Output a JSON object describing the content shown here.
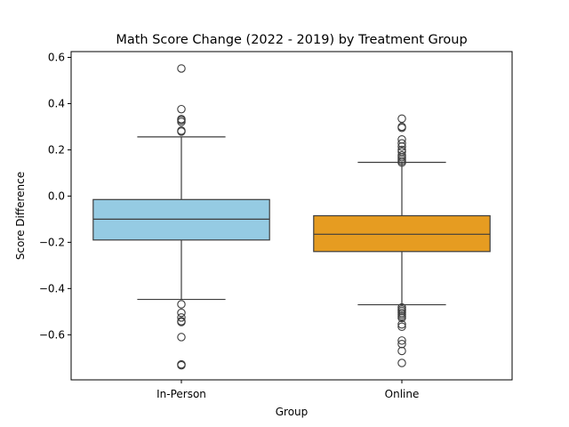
{
  "chart_data": {
    "type": "box",
    "title": "Math Score Change (2022 - 2019) by Treatment Group",
    "xlabel": "Group",
    "ylabel": "Score Difference",
    "ylim": [
      -0.795,
      0.625
    ],
    "yticks": [
      -0.6,
      -0.4,
      -0.2,
      0.0,
      0.2,
      0.4,
      0.6
    ],
    "ytick_labels": [
      "−0.6",
      "−0.4",
      "−0.2",
      "0.0",
      "0.2",
      "0.4",
      "0.6"
    ],
    "grid": false,
    "categories": [
      "In-Person",
      "Online"
    ],
    "series": [
      {
        "category": "In-Person",
        "color": "#95cbe3",
        "q1": -0.19,
        "median": -0.1,
        "q3": -0.015,
        "whisker_low": -0.447,
        "whisker_high": 0.256,
        "outliers": [
          0.552,
          0.376,
          0.333,
          0.328,
          0.321,
          0.283,
          0.279,
          -0.468,
          -0.505,
          -0.525,
          -0.541,
          -0.545,
          -0.61,
          -0.728,
          -0.732
        ]
      },
      {
        "category": "Online",
        "color": "#e69c21",
        "q1": -0.24,
        "median": -0.165,
        "q3": -0.085,
        "whisker_low": -0.47,
        "whisker_high": 0.146,
        "outliers": [
          0.335,
          0.3,
          0.295,
          0.245,
          0.228,
          0.214,
          0.2,
          0.192,
          0.176,
          0.168,
          0.16,
          0.152,
          0.145,
          -0.482,
          -0.49,
          -0.497,
          -0.505,
          -0.512,
          -0.52,
          -0.527,
          -0.555,
          -0.565,
          -0.625,
          -0.64,
          -0.67,
          -0.722
        ]
      }
    ]
  }
}
